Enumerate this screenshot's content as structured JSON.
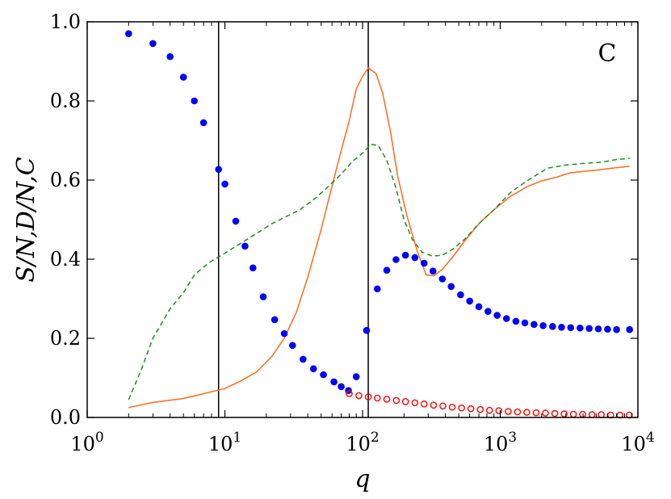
{
  "chart_data": {
    "type": "scatter",
    "xscale": "log",
    "xlim": [
      1,
      10000
    ],
    "ylim": [
      0.0,
      1.0
    ],
    "xlabel": "q",
    "ylabel": "S/N,D/N,C",
    "panel_label": "C",
    "x_ticks": [
      {
        "value": 1,
        "base": "10",
        "exp": "0"
      },
      {
        "value": 10,
        "base": "10",
        "exp": "1"
      },
      {
        "value": 100,
        "base": "10",
        "exp": "2"
      },
      {
        "value": 1000,
        "base": "10",
        "exp": "3"
      },
      {
        "value": 10000,
        "base": "10",
        "exp": "4"
      }
    ],
    "y_ticks": [
      {
        "value": 0.0,
        "label": "0.0"
      },
      {
        "value": 0.2,
        "label": "0.2"
      },
      {
        "value": 0.4,
        "label": "0.4"
      },
      {
        "value": 0.6,
        "label": "0.6"
      },
      {
        "value": 0.8,
        "label": "0.8"
      },
      {
        "value": 1.0,
        "label": "1.0"
      }
    ],
    "vlines": [
      9,
      110
    ],
    "series": [
      {
        "kind": "scatter-filled",
        "color": "#0000ff",
        "points": [
          [
            2,
            0.97
          ],
          [
            3,
            0.945
          ],
          [
            4,
            0.912
          ],
          [
            5,
            0.86
          ],
          [
            6,
            0.8
          ],
          [
            7,
            0.745
          ],
          [
            9,
            0.627
          ],
          [
            10,
            0.59
          ],
          [
            12,
            0.496
          ],
          [
            14,
            0.433
          ],
          [
            16,
            0.378
          ],
          [
            19,
            0.305
          ],
          [
            23,
            0.247
          ],
          [
            27,
            0.212
          ],
          [
            31,
            0.182
          ],
          [
            37,
            0.147
          ],
          [
            44,
            0.123
          ],
          [
            52,
            0.108
          ],
          [
            62,
            0.09
          ],
          [
            70,
            0.078
          ],
          [
            79,
            0.068
          ],
          [
            90,
            0.103
          ],
          [
            107,
            0.22
          ],
          [
            128,
            0.325
          ],
          [
            150,
            0.372
          ],
          [
            175,
            0.399
          ],
          [
            205,
            0.41
          ],
          [
            240,
            0.404
          ],
          [
            280,
            0.39
          ],
          [
            325,
            0.37
          ],
          [
            380,
            0.35
          ],
          [
            440,
            0.331
          ],
          [
            515,
            0.31
          ],
          [
            600,
            0.294
          ],
          [
            700,
            0.28
          ],
          [
            815,
            0.268
          ],
          [
            950,
            0.258
          ],
          [
            1110,
            0.25
          ],
          [
            1300,
            0.243
          ],
          [
            1510,
            0.239
          ],
          [
            1760,
            0.235
          ],
          [
            2050,
            0.232
          ],
          [
            2400,
            0.23
          ],
          [
            2790,
            0.228
          ],
          [
            3250,
            0.227
          ],
          [
            3800,
            0.226
          ],
          [
            4430,
            0.225
          ],
          [
            5160,
            0.224
          ],
          [
            6020,
            0.223
          ],
          [
            7000,
            0.222
          ],
          [
            8700,
            0.222
          ]
        ]
      },
      {
        "kind": "scatter-open",
        "color": "#ff0000",
        "points": [
          [
            80,
            0.06
          ],
          [
            94,
            0.055
          ],
          [
            110,
            0.052
          ],
          [
            128,
            0.049
          ],
          [
            150,
            0.046
          ],
          [
            176,
            0.043
          ],
          [
            205,
            0.04
          ],
          [
            240,
            0.037
          ],
          [
            280,
            0.034
          ],
          [
            328,
            0.031
          ],
          [
            383,
            0.029
          ],
          [
            448,
            0.026
          ],
          [
            524,
            0.024
          ],
          [
            612,
            0.022
          ],
          [
            716,
            0.02
          ],
          [
            836,
            0.018
          ],
          [
            977,
            0.017
          ],
          [
            1142,
            0.015
          ],
          [
            1335,
            0.014
          ],
          [
            1560,
            0.013
          ],
          [
            1823,
            0.012
          ],
          [
            2130,
            0.011
          ],
          [
            2490,
            0.01
          ],
          [
            2910,
            0.009
          ],
          [
            3400,
            0.008
          ],
          [
            3970,
            0.008
          ],
          [
            4640,
            0.007
          ],
          [
            5420,
            0.007
          ],
          [
            6340,
            0.006
          ],
          [
            7410,
            0.006
          ],
          [
            8660,
            0.006
          ]
        ]
      },
      {
        "kind": "line-solid",
        "color": "#ff6a1a",
        "points": [
          [
            2,
            0.025
          ],
          [
            3,
            0.038
          ],
          [
            5,
            0.048
          ],
          [
            7,
            0.06
          ],
          [
            10,
            0.073
          ],
          [
            13,
            0.092
          ],
          [
            17,
            0.115
          ],
          [
            22,
            0.155
          ],
          [
            27,
            0.2
          ],
          [
            33,
            0.265
          ],
          [
            40,
            0.355
          ],
          [
            50,
            0.475
          ],
          [
            60,
            0.585
          ],
          [
            70,
            0.675
          ],
          [
            80,
            0.75
          ],
          [
            90,
            0.83
          ],
          [
            100,
            0.862
          ],
          [
            110,
            0.883
          ],
          [
            125,
            0.87
          ],
          [
            140,
            0.82
          ],
          [
            160,
            0.72
          ],
          [
            180,
            0.61
          ],
          [
            210,
            0.51
          ],
          [
            250,
            0.42
          ],
          [
            290,
            0.36
          ],
          [
            330,
            0.358
          ],
          [
            380,
            0.375
          ],
          [
            450,
            0.405
          ],
          [
            550,
            0.445
          ],
          [
            700,
            0.49
          ],
          [
            900,
            0.525
          ],
          [
            1200,
            0.56
          ],
          [
            1600,
            0.585
          ],
          [
            2000,
            0.598
          ],
          [
            2600,
            0.608
          ],
          [
            3200,
            0.618
          ],
          [
            4000,
            0.622
          ],
          [
            5000,
            0.625
          ],
          [
            6500,
            0.63
          ],
          [
            8700,
            0.635
          ]
        ]
      },
      {
        "kind": "line-dashed",
        "color": "#228b22",
        "points": [
          [
            2,
            0.045
          ],
          [
            2.5,
            0.125
          ],
          [
            3,
            0.2
          ],
          [
            4,
            0.275
          ],
          [
            5,
            0.315
          ],
          [
            6,
            0.36
          ],
          [
            7,
            0.38
          ],
          [
            8,
            0.395
          ],
          [
            10,
            0.415
          ],
          [
            13,
            0.44
          ],
          [
            17,
            0.465
          ],
          [
            22,
            0.49
          ],
          [
            28,
            0.508
          ],
          [
            35,
            0.525
          ],
          [
            45,
            0.553
          ],
          [
            55,
            0.58
          ],
          [
            70,
            0.615
          ],
          [
            85,
            0.648
          ],
          [
            100,
            0.668
          ],
          [
            115,
            0.69
          ],
          [
            130,
            0.688
          ],
          [
            150,
            0.65
          ],
          [
            175,
            0.58
          ],
          [
            200,
            0.5
          ],
          [
            230,
            0.45
          ],
          [
            270,
            0.418
          ],
          [
            320,
            0.408
          ],
          [
            380,
            0.41
          ],
          [
            450,
            0.425
          ],
          [
            550,
            0.45
          ],
          [
            700,
            0.49
          ],
          [
            900,
            0.525
          ],
          [
            1200,
            0.57
          ],
          [
            1600,
            0.6
          ],
          [
            2200,
            0.63
          ],
          [
            3000,
            0.638
          ],
          [
            4000,
            0.642
          ],
          [
            5500,
            0.645
          ],
          [
            7000,
            0.652
          ],
          [
            8700,
            0.655
          ]
        ]
      }
    ]
  }
}
